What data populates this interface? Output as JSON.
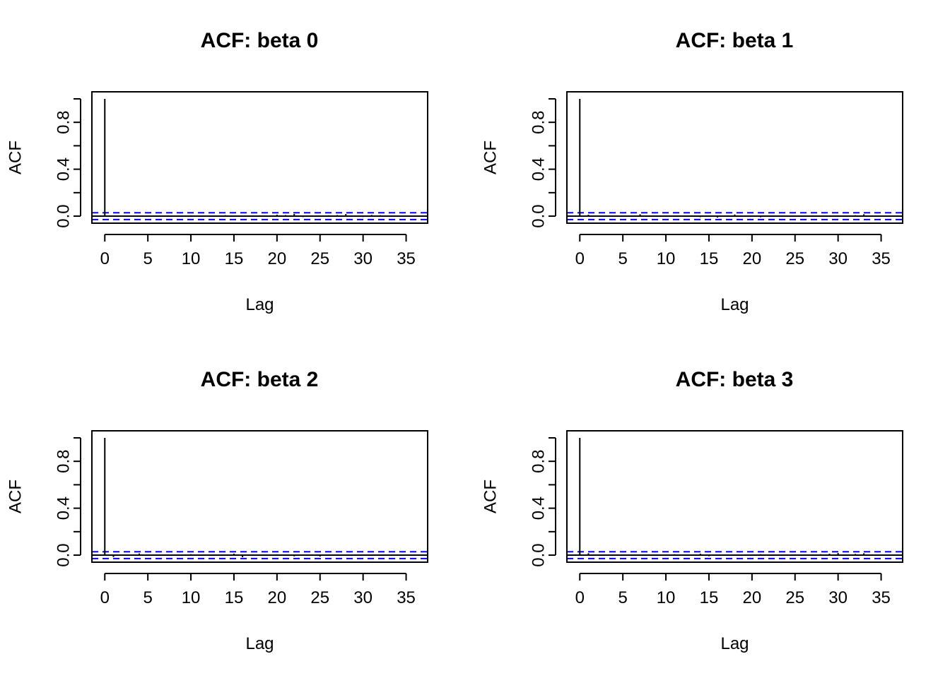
{
  "chart_data": [
    {
      "type": "bar",
      "title": "ACF: beta 0",
      "xlabel": "Lag",
      "ylabel": "ACF",
      "xlim": [
        -1.5,
        37.5
      ],
      "ylim": [
        -0.06,
        1.06
      ],
      "x_ticks": [
        0,
        5,
        10,
        15,
        20,
        25,
        30,
        35
      ],
      "y_ticks": [
        0.0,
        0.4,
        0.8
      ],
      "y_ticks_unlabeled": [
        0.2,
        0.6,
        1.0
      ],
      "ci": 0.029,
      "ci_color": "#0000ff",
      "lags": [
        0,
        1,
        2,
        3,
        4,
        5,
        6,
        7,
        8,
        9,
        10,
        11,
        12,
        13,
        14,
        15,
        16,
        17,
        18,
        19,
        20,
        21,
        22,
        23,
        24,
        25,
        26,
        27,
        28,
        29,
        30,
        31,
        32,
        33,
        34,
        35,
        36
      ],
      "values": [
        1.0,
        0.005,
        -0.004,
        0.006,
        -0.003,
        0.004,
        -0.006,
        0.003,
        0.005,
        -0.004,
        0.007,
        -0.005,
        0.004,
        -0.006,
        0.008,
        0.006,
        -0.004,
        0.005,
        0.007,
        -0.006,
        0.012,
        0.009,
        0.018,
        -0.008,
        0.006,
        -0.005,
        0.007,
        0.009,
        0.018,
        0.006,
        -0.007,
        0.01,
        0.008,
        0.005,
        -0.006,
        0.004,
        -0.003
      ]
    },
    {
      "type": "bar",
      "title": "ACF: beta 1",
      "xlabel": "Lag",
      "ylabel": "ACF",
      "xlim": [
        -1.5,
        37.5
      ],
      "ylim": [
        -0.06,
        1.06
      ],
      "x_ticks": [
        0,
        5,
        10,
        15,
        20,
        25,
        30,
        35
      ],
      "y_ticks": [
        0.0,
        0.4,
        0.8
      ],
      "y_ticks_unlabeled": [
        0.2,
        0.6,
        1.0
      ],
      "ci": 0.029,
      "ci_color": "#0000ff",
      "lags": [
        0,
        1,
        2,
        3,
        4,
        5,
        6,
        7,
        8,
        9,
        10,
        11,
        12,
        13,
        14,
        15,
        16,
        17,
        18,
        19,
        20,
        21,
        22,
        23,
        24,
        25,
        26,
        27,
        28,
        29,
        30,
        31,
        32,
        33,
        34,
        35,
        36
      ],
      "values": [
        1.0,
        0.012,
        -0.005,
        0.006,
        -0.004,
        0.005,
        0.003,
        0.016,
        -0.005,
        0.004,
        0.006,
        -0.004,
        0.005,
        0.007,
        -0.008,
        0.006,
        -0.012,
        0.005,
        0.014,
        -0.006,
        0.004,
        -0.009,
        0.005,
        0.004,
        -0.006,
        0.003,
        0.005,
        -0.004,
        0.006,
        0.005,
        0.007,
        -0.005,
        0.008,
        0.016,
        -0.004,
        0.005,
        0.003
      ]
    },
    {
      "type": "bar",
      "title": "ACF: beta 2",
      "xlabel": "Lag",
      "ylabel": "ACF",
      "xlim": [
        -1.5,
        37.5
      ],
      "ylim": [
        -0.06,
        1.06
      ],
      "x_ticks": [
        0,
        5,
        10,
        15,
        20,
        25,
        30,
        35
      ],
      "y_ticks": [
        0.0,
        0.4,
        0.8
      ],
      "y_ticks_unlabeled": [
        0.2,
        0.6,
        1.0
      ],
      "ci": 0.029,
      "ci_color": "#0000ff",
      "lags": [
        0,
        1,
        2,
        3,
        4,
        5,
        6,
        7,
        8,
        9,
        10,
        11,
        12,
        13,
        14,
        15,
        16,
        17,
        18,
        19,
        20,
        21,
        22,
        23,
        24,
        25,
        26,
        27,
        28,
        29,
        30,
        31,
        32,
        33,
        34,
        35,
        36
      ],
      "values": [
        1.0,
        -0.016,
        0.006,
        0.004,
        0.014,
        -0.005,
        0.006,
        0.004,
        -0.006,
        0.005,
        0.008,
        -0.004,
        0.006,
        0.004,
        -0.005,
        0.012,
        -0.018,
        0.005,
        0.006,
        -0.004,
        0.007,
        0.005,
        -0.01,
        0.004,
        0.006,
        -0.012,
        0.005,
        0.004,
        -0.006,
        0.005,
        0.004,
        -0.005,
        0.006,
        0.004,
        0.005,
        -0.003,
        0.004
      ]
    },
    {
      "type": "bar",
      "title": "ACF: beta 3",
      "xlabel": "Lag",
      "ylabel": "ACF",
      "xlim": [
        -1.5,
        37.5
      ],
      "ylim": [
        -0.06,
        1.06
      ],
      "x_ticks": [
        0,
        5,
        10,
        15,
        20,
        25,
        30,
        35
      ],
      "y_ticks": [
        0.0,
        0.4,
        0.8
      ],
      "y_ticks_unlabeled": [
        0.2,
        0.6,
        1.0
      ],
      "ci": 0.029,
      "ci_color": "#0000ff",
      "lags": [
        0,
        1,
        2,
        3,
        4,
        5,
        6,
        7,
        8,
        9,
        10,
        11,
        12,
        13,
        14,
        15,
        16,
        17,
        18,
        19,
        20,
        21,
        22,
        23,
        24,
        25,
        26,
        27,
        28,
        29,
        30,
        31,
        32,
        33,
        34,
        35,
        36
      ],
      "values": [
        1.0,
        0.016,
        0.006,
        -0.005,
        0.004,
        0.006,
        -0.004,
        0.005,
        0.007,
        -0.005,
        0.004,
        0.008,
        -0.006,
        0.005,
        0.012,
        -0.009,
        0.006,
        0.005,
        -0.004,
        0.006,
        0.005,
        0.008,
        -0.006,
        0.004,
        0.005,
        0.007,
        -0.004,
        0.006,
        0.008,
        0.012,
        0.018,
        -0.006,
        0.01,
        0.016,
        0.005,
        0.004,
        -0.003
      ]
    }
  ]
}
